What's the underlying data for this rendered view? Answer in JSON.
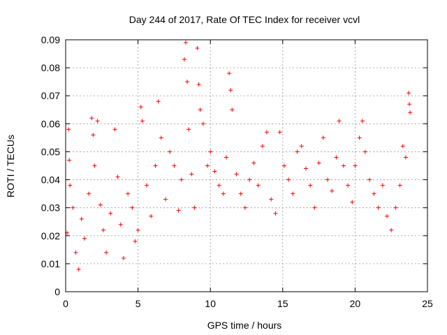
{
  "chart_data": {
    "type": "scatter",
    "title": "Day 244 of 2017, Rate Of TEC Index for receiver vcvl",
    "xlabel": "GPS time / hours",
    "ylabel": "ROTI / TECUs",
    "xlim": [
      0,
      25
    ],
    "ylim": [
      0,
      0.09
    ],
    "x_ticks": [
      0,
      5,
      10,
      15,
      20,
      25
    ],
    "y_ticks": [
      0,
      0.01,
      0.02,
      0.03,
      0.04,
      0.05,
      0.06,
      0.07,
      0.08,
      0.09
    ],
    "x_tick_labels": [
      "0",
      "5",
      "10",
      "15",
      "20",
      "25"
    ],
    "y_tick_labels": [
      "0",
      "0.01",
      "0.02",
      "0.03",
      "0.04",
      "0.05",
      "0.06",
      "0.07",
      "0.08",
      "0.09"
    ],
    "grid": true,
    "marker": "plus",
    "marker_color": "#ff0000",
    "series": [
      {
        "values": [
          [
            0.1,
            0.021
          ],
          [
            0.2,
            0.058
          ],
          [
            0.25,
            0.047
          ],
          [
            0.3,
            0.038
          ],
          [
            0.5,
            0.03
          ],
          [
            0.7,
            0.014
          ],
          [
            0.9,
            0.008
          ],
          [
            1.1,
            0.026
          ],
          [
            1.3,
            0.019
          ],
          [
            1.6,
            0.035
          ],
          [
            1.8,
            0.062
          ],
          [
            1.9,
            0.056
          ],
          [
            2.0,
            0.045
          ],
          [
            2.2,
            0.061
          ],
          [
            2.4,
            0.031
          ],
          [
            2.6,
            0.022
          ],
          [
            2.8,
            0.014
          ],
          [
            3.1,
            0.028
          ],
          [
            3.4,
            0.058
          ],
          [
            3.6,
            0.041
          ],
          [
            3.8,
            0.024
          ],
          [
            4.0,
            0.012
          ],
          [
            4.3,
            0.035
          ],
          [
            4.6,
            0.03
          ],
          [
            4.8,
            0.018
          ],
          [
            5.0,
            0.022
          ],
          [
            5.2,
            0.066
          ],
          [
            5.3,
            0.061
          ],
          [
            5.6,
            0.038
          ],
          [
            5.9,
            0.027
          ],
          [
            6.2,
            0.045
          ],
          [
            6.4,
            0.068
          ],
          [
            6.6,
            0.055
          ],
          [
            6.9,
            0.033
          ],
          [
            7.2,
            0.05
          ],
          [
            7.5,
            0.045
          ],
          [
            7.8,
            0.029
          ],
          [
            8.0,
            0.04
          ],
          [
            8.2,
            0.083
          ],
          [
            8.3,
            0.089
          ],
          [
            8.4,
            0.075
          ],
          [
            8.5,
            0.058
          ],
          [
            8.7,
            0.042
          ],
          [
            8.9,
            0.03
          ],
          [
            9.1,
            0.087
          ],
          [
            9.2,
            0.074
          ],
          [
            9.3,
            0.065
          ],
          [
            9.5,
            0.06
          ],
          [
            9.8,
            0.045
          ],
          [
            10.0,
            0.05
          ],
          [
            10.3,
            0.043
          ],
          [
            10.6,
            0.038
          ],
          [
            10.9,
            0.035
          ],
          [
            11.1,
            0.048
          ],
          [
            11.3,
            0.078
          ],
          [
            11.4,
            0.072
          ],
          [
            11.5,
            0.065
          ],
          [
            11.8,
            0.042
          ],
          [
            12.1,
            0.035
          ],
          [
            12.4,
            0.03
          ],
          [
            12.7,
            0.04
          ],
          [
            13.0,
            0.046
          ],
          [
            13.3,
            0.038
          ],
          [
            13.6,
            0.052
          ],
          [
            13.9,
            0.057
          ],
          [
            14.2,
            0.033
          ],
          [
            14.5,
            0.028
          ],
          [
            14.8,
            0.057
          ],
          [
            15.1,
            0.045
          ],
          [
            15.4,
            0.04
          ],
          [
            15.7,
            0.035
          ],
          [
            16.0,
            0.05
          ],
          [
            16.3,
            0.052
          ],
          [
            16.6,
            0.044
          ],
          [
            16.9,
            0.038
          ],
          [
            17.2,
            0.03
          ],
          [
            17.5,
            0.046
          ],
          [
            17.8,
            0.055
          ],
          [
            18.1,
            0.04
          ],
          [
            18.4,
            0.036
          ],
          [
            18.7,
            0.048
          ],
          [
            18.9,
            0.061
          ],
          [
            19.2,
            0.045
          ],
          [
            19.5,
            0.038
          ],
          [
            19.8,
            0.032
          ],
          [
            20.0,
            0.045
          ],
          [
            20.3,
            0.055
          ],
          [
            20.5,
            0.061
          ],
          [
            20.7,
            0.05
          ],
          [
            21.0,
            0.04
          ],
          [
            21.3,
            0.035
          ],
          [
            21.6,
            0.03
          ],
          [
            21.9,
            0.038
          ],
          [
            22.2,
            0.027
          ],
          [
            22.5,
            0.022
          ],
          [
            22.8,
            0.03
          ],
          [
            23.1,
            0.038
          ],
          [
            23.3,
            0.052
          ],
          [
            23.5,
            0.048
          ],
          [
            23.7,
            0.071
          ],
          [
            23.75,
            0.067
          ],
          [
            23.8,
            0.064
          ]
        ]
      }
    ]
  }
}
